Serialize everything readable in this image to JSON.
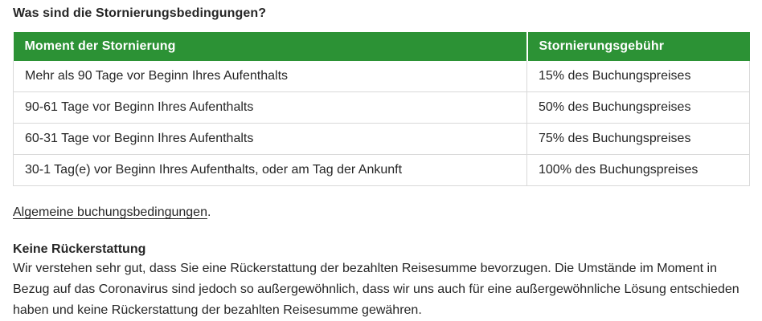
{
  "page": {
    "title": "Was sind die Stornierungsbedingungen?"
  },
  "table": {
    "columns": [
      "Moment der Stornierung",
      "Stornierungsgebühr"
    ],
    "rows": [
      {
        "moment": "Mehr als 90 Tage vor Beginn Ihres Aufenthalts",
        "fee": "15% des Buchungspreises"
      },
      {
        "moment": "90-61 Tage vor Beginn Ihres Aufenthalts",
        "fee": "50% des Buchungspreises"
      },
      {
        "moment": "60-31 Tage vor Beginn Ihres Aufenthalts",
        "fee": "75% des Buchungspreises"
      },
      {
        "moment": "30-1 Tag(e) vor Beginn Ihres Aufenthalts, oder am Tag der Ankunft",
        "fee": "100% des Buchungspreises"
      }
    ]
  },
  "link": {
    "label": "Algemeine buchungsbedingungen",
    "suffix": "."
  },
  "refund_section": {
    "heading": "Keine Rückerstattung",
    "body": "Wir verstehen sehr gut, dass Sie eine Rückerstattung der bezahlten Reisesumme bevorzugen. Die Umstände im Moment in Bezug auf das Coronavirus sind jedoch so außergewöhnlich, dass wir uns auch für eine außergewöhnliche Lösung entschieden haben und keine Rückerstattung der bezahlten Reisesumme gewähren."
  },
  "colors": {
    "table_header_bg": "#2c9235",
    "table_header_text": "#ffffff",
    "table_border": "#d9d9d9",
    "body_text": "#262626",
    "page_bg": "#ffffff"
  }
}
